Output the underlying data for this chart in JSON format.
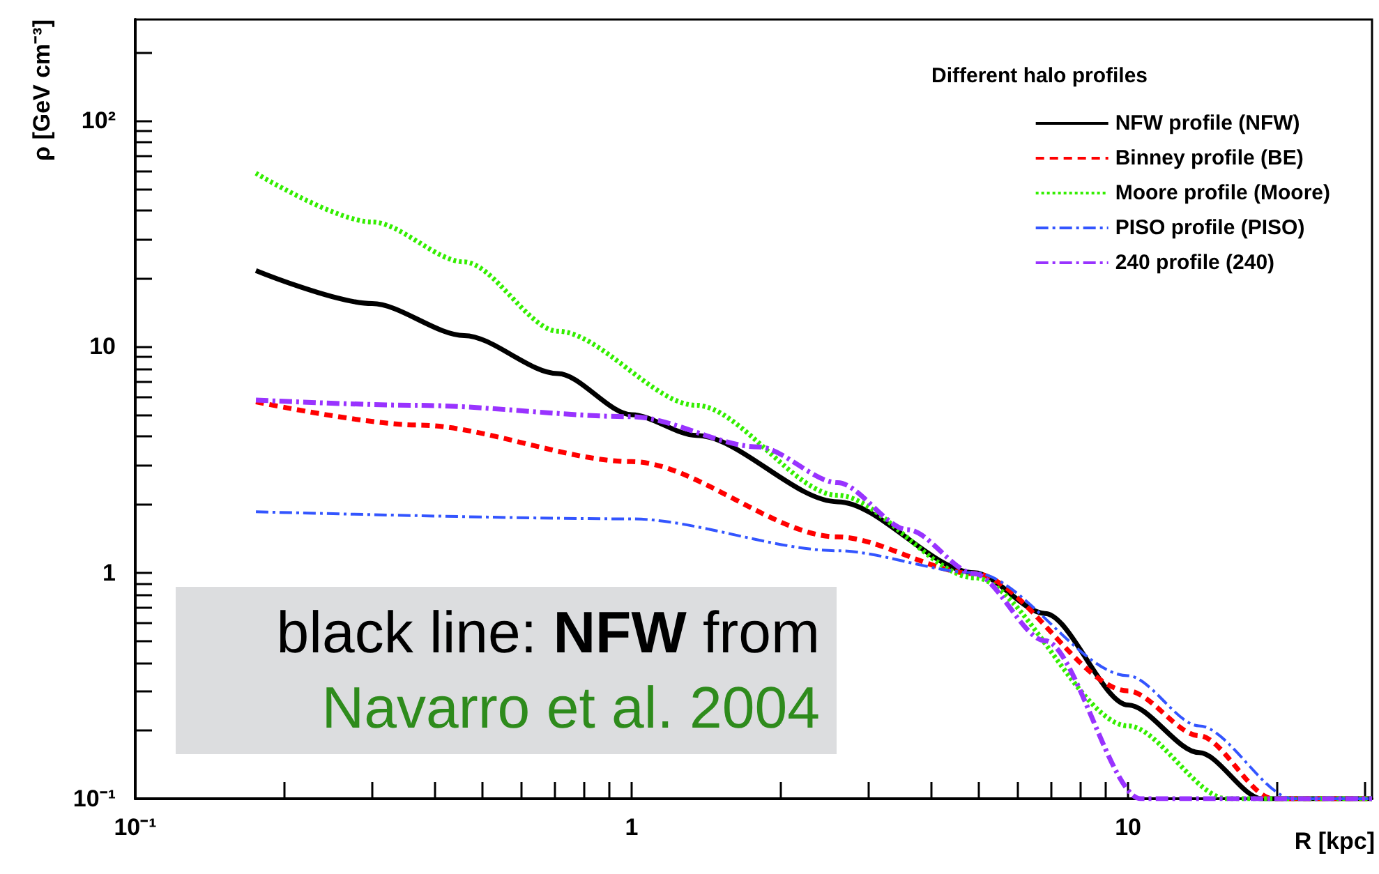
{
  "chart_data": {
    "type": "line",
    "xlabel": "R [kpc]",
    "ylabel": "ρ [GeV cm⁻³]",
    "legend_title": "Different halo profiles",
    "legend": "top right",
    "grid": false,
    "log": "xy",
    "marker": "none",
    "xlim": [
      0.1,
      31
    ],
    "ylim": [
      0.1,
      280
    ],
    "xticks": [
      {
        "value": 0.1,
        "label": "10⁻¹"
      },
      {
        "value": 0.2,
        "label": null
      },
      {
        "value": 0.3,
        "label": null
      },
      {
        "value": 0.4,
        "label": null
      },
      {
        "value": 0.5,
        "label": null
      },
      {
        "value": 0.6,
        "label": null
      },
      {
        "value": 0.7,
        "label": null
      },
      {
        "value": 0.8,
        "label": null
      },
      {
        "value": 0.9,
        "label": null
      },
      1,
      {
        "value": 2,
        "label": null
      },
      {
        "value": 3,
        "label": null
      },
      {
        "value": 4,
        "label": null
      },
      {
        "value": 5,
        "label": null
      },
      {
        "value": 6,
        "label": null
      },
      {
        "value": 7,
        "label": null
      },
      {
        "value": 8,
        "label": null
      },
      {
        "value": 9,
        "label": null
      },
      10,
      {
        "value": 20,
        "label": null
      },
      {
        "value": 30,
        "label": null
      }
    ],
    "yticks": [
      {
        "value": 0.1,
        "label": "10⁻¹"
      },
      {
        "value": 0.2,
        "label": null
      },
      {
        "value": 0.3,
        "label": null
      },
      {
        "value": 0.4,
        "label": null
      },
      {
        "value": 0.5,
        "label": null
      },
      {
        "value": 0.6,
        "label": null
      },
      {
        "value": 0.7,
        "label": null
      },
      {
        "value": 0.8,
        "label": null
      },
      {
        "value": 0.9,
        "label": null
      },
      1,
      {
        "value": 2,
        "label": null
      },
      {
        "value": 3,
        "label": null
      },
      {
        "value": 4,
        "label": null
      },
      {
        "value": 5,
        "label": null
      },
      {
        "value": 6,
        "label": null
      },
      {
        "value": 7,
        "label": null
      },
      {
        "value": 8,
        "label": null
      },
      {
        "value": 9,
        "label": null
      },
      10,
      {
        "value": 20,
        "label": null
      },
      {
        "value": 30,
        "label": null
      },
      {
        "value": 40,
        "label": null
      },
      {
        "value": 50,
        "label": null
      },
      {
        "value": 60,
        "label": null
      },
      {
        "value": 70,
        "label": null
      },
      {
        "value": 80,
        "label": null
      },
      {
        "value": 90,
        "label": null
      },
      {
        "value": 100,
        "label": "10²"
      },
      {
        "value": 200,
        "label": null
      }
    ],
    "series": [
      {
        "name": "NFW profile (NFW)",
        "color": "#000000",
        "line_style": "solid",
        "x": [
          0.175,
          0.3,
          0.46,
          0.71,
          1.0,
          1.35,
          2.6,
          4.9,
          6.8,
          10,
          13.9,
          18.6,
          31
        ],
        "values": [
          21.7,
          15.5,
          11.2,
          7.6,
          5.0,
          4.05,
          2.06,
          1.0,
          0.66,
          0.26,
          0.16,
          0.1,
          0.1
        ]
      },
      {
        "name": "Binney profile (BE)",
        "color": "#ff0000",
        "line_style": "dashed",
        "x": [
          0.175,
          0.37,
          1.0,
          2.6,
          4.9,
          10,
          13.9,
          19.6,
          31
        ],
        "values": [
          5.7,
          4.5,
          3.1,
          1.44,
          0.99,
          0.3,
          0.19,
          0.1,
          0.1
        ]
      },
      {
        "name": "Moore profile (Moore)",
        "color": "#33ee00",
        "line_style": "dotted",
        "x": [
          0.175,
          0.3,
          0.46,
          0.71,
          1.35,
          2.6,
          4.9,
          10,
          15.8,
          31
        ],
        "values": [
          58.5,
          35.6,
          23.7,
          11.7,
          5.5,
          2.2,
          0.95,
          0.21,
          0.1,
          0.1
        ]
      },
      {
        "name": "PISO profile (PISO)",
        "color": "#3355ff",
        "line_style": "dashdot",
        "x": [
          0.175,
          1.0,
          2.6,
          4.9,
          10,
          13.9,
          21.5,
          31
        ],
        "values": [
          1.86,
          1.73,
          1.25,
          1.0,
          0.35,
          0.21,
          0.1,
          0.1
        ]
      },
      {
        "name": "240 profile (240)",
        "color": "#9933ff",
        "line_style": "dashdot",
        "x": [
          0.175,
          0.37,
          1.0,
          1.8,
          2.6,
          3.6,
          4.9,
          6.8,
          10.6,
          31
        ],
        "values": [
          5.8,
          5.5,
          4.9,
          3.6,
          2.5,
          1.55,
          0.99,
          0.5,
          0.1,
          0.1
        ]
      }
    ],
    "annotations": [
      "black line: NFW from",
      "Navarro et al. 2004"
    ]
  }
}
